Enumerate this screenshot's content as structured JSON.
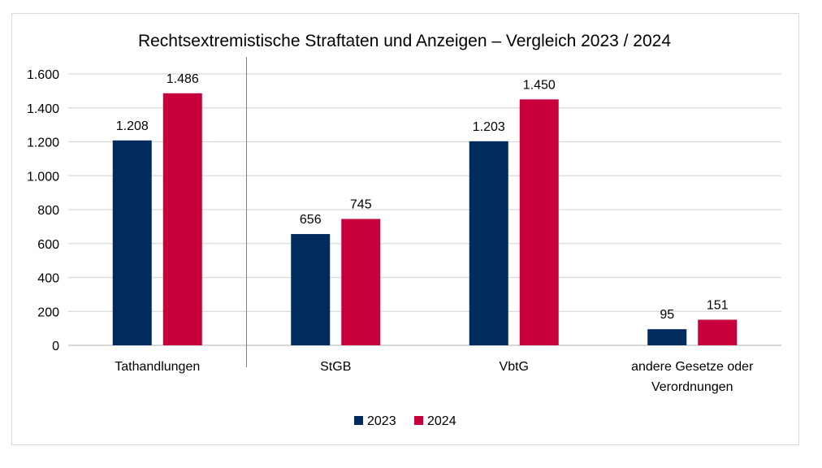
{
  "chart_data": {
    "type": "bar",
    "title": "Rechtsextremistische Straftaten und Anzeigen – Vergleich 2023 / 2024",
    "categories": [
      "Tathandlungen",
      "StGB",
      "VbtG",
      "andere Gesetze oder Verordnungen"
    ],
    "category_lines": [
      [
        "Tathandlungen"
      ],
      [
        "StGB"
      ],
      [
        "VbtG"
      ],
      [
        "andere Gesetze oder",
        "Verordnungen"
      ]
    ],
    "series": [
      {
        "name": "2023",
        "color": "#002b5c",
        "values": [
          1208,
          656,
          1203,
          95
        ],
        "labels": [
          "1.208",
          "656",
          "1.203",
          "95"
        ]
      },
      {
        "name": "2024",
        "color": "#c8003c",
        "values": [
          1486,
          745,
          1450,
          151
        ],
        "labels": [
          "1.486",
          "745",
          "1.450",
          "151"
        ]
      }
    ],
    "ylim": [
      0,
      1600
    ],
    "yticks": [
      0,
      200,
      400,
      600,
      800,
      1000,
      1200,
      1400,
      1600
    ],
    "ytick_labels": [
      "0",
      "200",
      "400",
      "600",
      "800",
      "1.000",
      "1.200",
      "1.400",
      "1.600"
    ],
    "xlabel": "",
    "ylabel": "",
    "grid": true,
    "legend": "bottom",
    "separator_after_category": 0
  }
}
